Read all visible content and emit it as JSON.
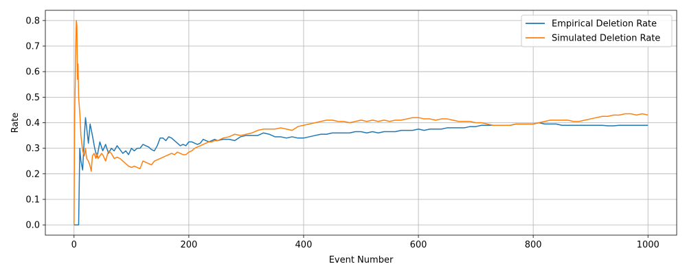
{
  "chart_data": {
    "type": "line",
    "title": "",
    "xlabel": "Event Number",
    "ylabel": "Rate",
    "xlim": [
      -50,
      1050
    ],
    "ylim": [
      -0.04,
      0.84
    ],
    "xticks": [
      0,
      200,
      400,
      600,
      800,
      1000
    ],
    "yticks": [
      0.0,
      0.1,
      0.2,
      0.3,
      0.4,
      0.5,
      0.6,
      0.7,
      0.8
    ],
    "xtick_labels": [
      "0",
      "200",
      "400",
      "600",
      "800",
      "1000"
    ],
    "ytick_labels": [
      "0.0",
      "0.1",
      "0.2",
      "0.3",
      "0.4",
      "0.5",
      "0.6",
      "0.7",
      "0.8"
    ],
    "grid": true,
    "legend": "top-right",
    "series": [
      {
        "name": "Empirical Deletion Rate",
        "color": "#1f77b4",
        "points": [
          [
            0,
            0.0
          ],
          [
            5,
            0.0
          ],
          [
            8,
            0.0
          ],
          [
            10,
            0.3
          ],
          [
            12,
            0.25
          ],
          [
            15,
            0.215
          ],
          [
            18,
            0.35
          ],
          [
            20,
            0.42
          ],
          [
            23,
            0.36
          ],
          [
            25,
            0.32
          ],
          [
            28,
            0.395
          ],
          [
            32,
            0.35
          ],
          [
            36,
            0.3
          ],
          [
            40,
            0.265
          ],
          [
            45,
            0.325
          ],
          [
            50,
            0.29
          ],
          [
            55,
            0.315
          ],
          [
            60,
            0.28
          ],
          [
            65,
            0.3
          ],
          [
            70,
            0.29
          ],
          [
            75,
            0.31
          ],
          [
            80,
            0.295
          ],
          [
            85,
            0.28
          ],
          [
            90,
            0.29
          ],
          [
            95,
            0.275
          ],
          [
            100,
            0.3
          ],
          [
            105,
            0.29
          ],
          [
            110,
            0.3
          ],
          [
            115,
            0.3
          ],
          [
            120,
            0.315
          ],
          [
            125,
            0.31
          ],
          [
            130,
            0.305
          ],
          [
            135,
            0.295
          ],
          [
            140,
            0.29
          ],
          [
            145,
            0.31
          ],
          [
            150,
            0.34
          ],
          [
            155,
            0.34
          ],
          [
            160,
            0.33
          ],
          [
            165,
            0.345
          ],
          [
            170,
            0.34
          ],
          [
            175,
            0.33
          ],
          [
            180,
            0.32
          ],
          [
            185,
            0.31
          ],
          [
            190,
            0.315
          ],
          [
            195,
            0.31
          ],
          [
            200,
            0.325
          ],
          [
            205,
            0.325
          ],
          [
            210,
            0.32
          ],
          [
            215,
            0.315
          ],
          [
            220,
            0.32
          ],
          [
            225,
            0.335
          ],
          [
            230,
            0.33
          ],
          [
            235,
            0.325
          ],
          [
            240,
            0.33
          ],
          [
            245,
            0.335
          ],
          [
            250,
            0.33
          ],
          [
            260,
            0.335
          ],
          [
            270,
            0.335
          ],
          [
            280,
            0.33
          ],
          [
            290,
            0.345
          ],
          [
            300,
            0.35
          ],
          [
            310,
            0.35
          ],
          [
            320,
            0.35
          ],
          [
            330,
            0.36
          ],
          [
            340,
            0.355
          ],
          [
            350,
            0.345
          ],
          [
            360,
            0.345
          ],
          [
            370,
            0.34
          ],
          [
            380,
            0.345
          ],
          [
            390,
            0.34
          ],
          [
            400,
            0.34
          ],
          [
            410,
            0.345
          ],
          [
            420,
            0.35
          ],
          [
            430,
            0.355
          ],
          [
            440,
            0.355
          ],
          [
            450,
            0.36
          ],
          [
            460,
            0.36
          ],
          [
            470,
            0.36
          ],
          [
            480,
            0.36
          ],
          [
            490,
            0.365
          ],
          [
            500,
            0.365
          ],
          [
            510,
            0.36
          ],
          [
            520,
            0.365
          ],
          [
            530,
            0.36
          ],
          [
            540,
            0.365
          ],
          [
            550,
            0.365
          ],
          [
            560,
            0.365
          ],
          [
            570,
            0.37
          ],
          [
            580,
            0.37
          ],
          [
            590,
            0.37
          ],
          [
            600,
            0.375
          ],
          [
            610,
            0.37
          ],
          [
            620,
            0.375
          ],
          [
            630,
            0.375
          ],
          [
            640,
            0.375
          ],
          [
            650,
            0.38
          ],
          [
            660,
            0.38
          ],
          [
            670,
            0.38
          ],
          [
            680,
            0.38
          ],
          [
            690,
            0.385
          ],
          [
            700,
            0.385
          ],
          [
            710,
            0.39
          ],
          [
            720,
            0.39
          ],
          [
            730,
            0.39
          ],
          [
            740,
            0.39
          ],
          [
            750,
            0.39
          ],
          [
            760,
            0.39
          ],
          [
            770,
            0.395
          ],
          [
            780,
            0.395
          ],
          [
            790,
            0.395
          ],
          [
            800,
            0.395
          ],
          [
            810,
            0.4
          ],
          [
            820,
            0.395
          ],
          [
            830,
            0.395
          ],
          [
            840,
            0.395
          ],
          [
            850,
            0.39
          ],
          [
            860,
            0.39
          ],
          [
            870,
            0.39
          ],
          [
            880,
            0.39
          ],
          [
            890,
            0.39
          ],
          [
            900,
            0.39
          ],
          [
            910,
            0.39
          ],
          [
            920,
            0.39
          ],
          [
            930,
            0.388
          ],
          [
            940,
            0.388
          ],
          [
            950,
            0.39
          ],
          [
            960,
            0.39
          ],
          [
            970,
            0.39
          ],
          [
            980,
            0.39
          ],
          [
            990,
            0.39
          ],
          [
            1000,
            0.39
          ]
        ]
      },
      {
        "name": "Simulated Deletion Rate",
        "color": "#ff7f0e",
        "points": [
          [
            0,
            0.0
          ],
          [
            1,
            0.42
          ],
          [
            2,
            0.55
          ],
          [
            3,
            0.7
          ],
          [
            4,
            0.8
          ],
          [
            5,
            0.78
          ],
          [
            6,
            0.57
          ],
          [
            7,
            0.63
          ],
          [
            8,
            0.5
          ],
          [
            10,
            0.44
          ],
          [
            12,
            0.35
          ],
          [
            15,
            0.29
          ],
          [
            18,
            0.27
          ],
          [
            20,
            0.3
          ],
          [
            22,
            0.26
          ],
          [
            25,
            0.25
          ],
          [
            28,
            0.23
          ],
          [
            30,
            0.21
          ],
          [
            32,
            0.27
          ],
          [
            35,
            0.28
          ],
          [
            38,
            0.26
          ],
          [
            40,
            0.28
          ],
          [
            42,
            0.26
          ],
          [
            45,
            0.27
          ],
          [
            48,
            0.28
          ],
          [
            50,
            0.275
          ],
          [
            55,
            0.25
          ],
          [
            60,
            0.29
          ],
          [
            65,
            0.28
          ],
          [
            70,
            0.26
          ],
          [
            75,
            0.265
          ],
          [
            80,
            0.26
          ],
          [
            85,
            0.25
          ],
          [
            90,
            0.24
          ],
          [
            95,
            0.23
          ],
          [
            100,
            0.225
          ],
          [
            105,
            0.23
          ],
          [
            110,
            0.225
          ],
          [
            115,
            0.22
          ],
          [
            120,
            0.25
          ],
          [
            125,
            0.245
          ],
          [
            130,
            0.24
          ],
          [
            135,
            0.235
          ],
          [
            140,
            0.25
          ],
          [
            145,
            0.255
          ],
          [
            150,
            0.26
          ],
          [
            155,
            0.265
          ],
          [
            160,
            0.27
          ],
          [
            165,
            0.275
          ],
          [
            170,
            0.28
          ],
          [
            175,
            0.275
          ],
          [
            180,
            0.285
          ],
          [
            185,
            0.28
          ],
          [
            190,
            0.275
          ],
          [
            195,
            0.275
          ],
          [
            200,
            0.285
          ],
          [
            205,
            0.29
          ],
          [
            210,
            0.3
          ],
          [
            215,
            0.305
          ],
          [
            220,
            0.31
          ],
          [
            225,
            0.315
          ],
          [
            230,
            0.32
          ],
          [
            235,
            0.325
          ],
          [
            240,
            0.325
          ],
          [
            245,
            0.33
          ],
          [
            250,
            0.33
          ],
          [
            260,
            0.34
          ],
          [
            270,
            0.345
          ],
          [
            280,
            0.355
          ],
          [
            290,
            0.35
          ],
          [
            300,
            0.355
          ],
          [
            310,
            0.36
          ],
          [
            320,
            0.37
          ],
          [
            330,
            0.375
          ],
          [
            340,
            0.375
          ],
          [
            350,
            0.375
          ],
          [
            360,
            0.38
          ],
          [
            370,
            0.375
          ],
          [
            380,
            0.37
          ],
          [
            390,
            0.385
          ],
          [
            400,
            0.39
          ],
          [
            410,
            0.395
          ],
          [
            420,
            0.4
          ],
          [
            430,
            0.405
          ],
          [
            440,
            0.41
          ],
          [
            450,
            0.41
          ],
          [
            460,
            0.405
          ],
          [
            470,
            0.405
          ],
          [
            480,
            0.4
          ],
          [
            490,
            0.405
          ],
          [
            500,
            0.41
          ],
          [
            510,
            0.405
          ],
          [
            520,
            0.41
          ],
          [
            530,
            0.405
          ],
          [
            540,
            0.41
          ],
          [
            550,
            0.405
          ],
          [
            560,
            0.41
          ],
          [
            570,
            0.41
          ],
          [
            580,
            0.415
          ],
          [
            590,
            0.42
          ],
          [
            600,
            0.42
          ],
          [
            610,
            0.415
          ],
          [
            620,
            0.415
          ],
          [
            630,
            0.41
          ],
          [
            640,
            0.415
          ],
          [
            650,
            0.415
          ],
          [
            660,
            0.41
          ],
          [
            670,
            0.405
          ],
          [
            680,
            0.405
          ],
          [
            690,
            0.405
          ],
          [
            700,
            0.4
          ],
          [
            710,
            0.4
          ],
          [
            720,
            0.395
          ],
          [
            730,
            0.39
          ],
          [
            740,
            0.39
          ],
          [
            750,
            0.39
          ],
          [
            760,
            0.39
          ],
          [
            770,
            0.395
          ],
          [
            780,
            0.395
          ],
          [
            790,
            0.395
          ],
          [
            800,
            0.395
          ],
          [
            810,
            0.4
          ],
          [
            820,
            0.405
          ],
          [
            830,
            0.41
          ],
          [
            840,
            0.41
          ],
          [
            850,
            0.41
          ],
          [
            860,
            0.41
          ],
          [
            870,
            0.405
          ],
          [
            880,
            0.405
          ],
          [
            890,
            0.41
          ],
          [
            900,
            0.415
          ],
          [
            910,
            0.42
          ],
          [
            920,
            0.425
          ],
          [
            930,
            0.425
          ],
          [
            940,
            0.43
          ],
          [
            950,
            0.43
          ],
          [
            960,
            0.435
          ],
          [
            970,
            0.435
          ],
          [
            980,
            0.43
          ],
          [
            990,
            0.435
          ],
          [
            1000,
            0.43
          ]
        ]
      }
    ]
  }
}
